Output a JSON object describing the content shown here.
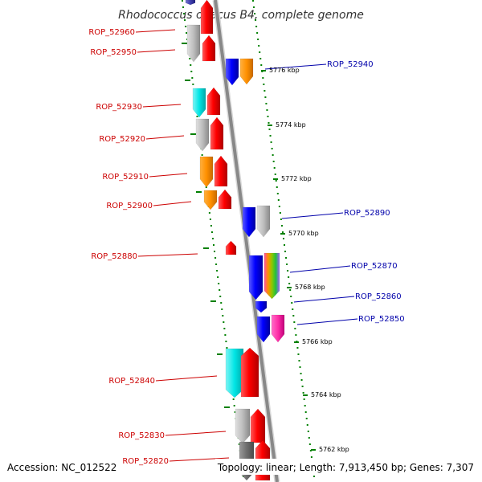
{
  "title": "Rhodococcus opacus B4, complete genome",
  "accession": "Accession: NC_012522",
  "summary": "Topology: linear; Length: 7,913,450 bp; Genes: 7,307",
  "colors": {
    "left_label": "#cc0000",
    "right_label": "#0000aa",
    "tick": "#008000",
    "axis": "#888888"
  },
  "ticks": [
    {
      "label": "5776 kbp"
    },
    {
      "label": "5774 kbp"
    },
    {
      "label": "5772 kbp"
    },
    {
      "label": "5770 kbp"
    },
    {
      "label": "5768 kbp"
    },
    {
      "label": "5766 kbp"
    },
    {
      "label": "5764 kbp"
    },
    {
      "label": "5762 kbp"
    }
  ],
  "genes": [
    {
      "name": "ROP_52960",
      "side": "left"
    },
    {
      "name": "ROP_52950",
      "side": "left"
    },
    {
      "name": "ROP_52940",
      "side": "right"
    },
    {
      "name": "ROP_52930",
      "side": "left"
    },
    {
      "name": "ROP_52920",
      "side": "left"
    },
    {
      "name": "ROP_52910",
      "side": "left"
    },
    {
      "name": "ROP_52900",
      "side": "left"
    },
    {
      "name": "ROP_52890",
      "side": "right"
    },
    {
      "name": "ROP_52880",
      "side": "left"
    },
    {
      "name": "ROP_52870",
      "side": "right"
    },
    {
      "name": "ROP_52860",
      "side": "right"
    },
    {
      "name": "ROP_52850",
      "side": "right"
    },
    {
      "name": "ROP_52840",
      "side": "left"
    },
    {
      "name": "ROP_52830",
      "side": "left"
    },
    {
      "name": "ROP_52820",
      "side": "left"
    }
  ]
}
